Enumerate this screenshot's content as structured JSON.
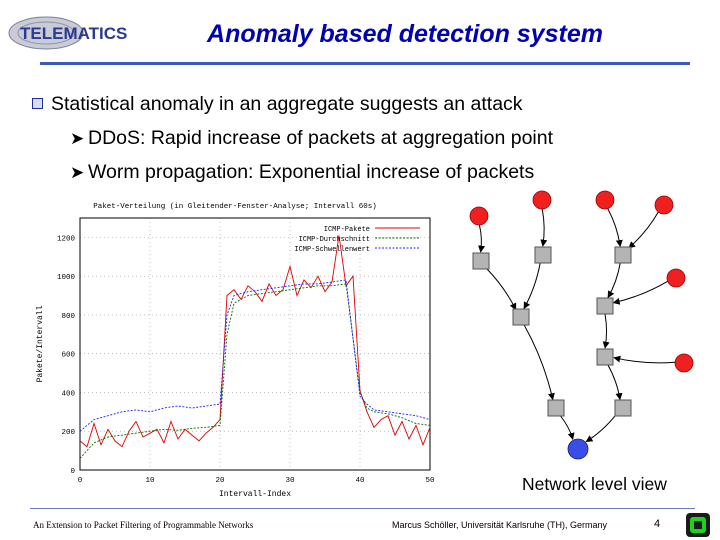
{
  "header": {
    "logo_text": "TELEMATICS",
    "title": "Anomaly based detection system"
  },
  "bullets": {
    "main": "Statistical anomaly in an aggregate suggests an attack",
    "sub1": "DDoS: Rapid increase of packets at aggregation point",
    "sub2": "Worm propagation: Exponential increase of packets"
  },
  "chart_data": {
    "type": "line",
    "title": "Paket-Verteilung (in Gleitender-Fenster-Analyse; Intervall 60s)",
    "xlabel": "Intervall-Index",
    "ylabel": "Pakete/Intervall",
    "xlim": [
      0,
      50
    ],
    "ylim": [
      0,
      1300
    ],
    "xticks": [
      0,
      10,
      20,
      30,
      40,
      50
    ],
    "yticks": [
      0,
      200,
      400,
      600,
      800,
      1000,
      1200
    ],
    "legend_position": "top-right",
    "series": [
      {
        "name": "ICMP-Pakete",
        "color": "#e00000",
        "x": [
          0,
          1,
          2,
          3,
          4,
          5,
          6,
          7,
          8,
          9,
          10,
          11,
          12,
          13,
          14,
          15,
          16,
          17,
          18,
          19,
          20,
          21,
          22,
          23,
          24,
          25,
          26,
          27,
          28,
          29,
          30,
          31,
          32,
          33,
          34,
          35,
          36,
          37,
          38,
          39,
          40,
          41,
          42,
          43,
          44,
          45,
          46,
          47,
          48,
          49,
          50
        ],
        "y": [
          150,
          120,
          240,
          130,
          210,
          150,
          120,
          200,
          250,
          170,
          190,
          210,
          140,
          250,
          160,
          210,
          180,
          150,
          190,
          220,
          260,
          900,
          930,
          880,
          950,
          920,
          870,
          960,
          900,
          930,
          1050,
          900,
          980,
          940,
          1000,
          920,
          970,
          1210,
          950,
          1000,
          410,
          300,
          220,
          260,
          280,
          180,
          250,
          160,
          230,
          130,
          220
        ]
      },
      {
        "name": "ICMP-Durchschnitt",
        "color": "#007000",
        "x": [
          0,
          2,
          4,
          6,
          8,
          10,
          12,
          14,
          16,
          18,
          20,
          21,
          22,
          24,
          26,
          28,
          30,
          32,
          34,
          36,
          38,
          40,
          41,
          42,
          44,
          46,
          48,
          50
        ],
        "y": [
          60,
          140,
          170,
          180,
          190,
          200,
          210,
          205,
          215,
          220,
          230,
          700,
          860,
          900,
          910,
          920,
          930,
          940,
          950,
          950,
          960,
          400,
          320,
          300,
          290,
          270,
          240,
          230
        ]
      },
      {
        "name": "ICMP-Schwellenwert",
        "color": "#2020ff",
        "x": [
          0,
          2,
          4,
          6,
          8,
          10,
          12,
          14,
          16,
          18,
          20,
          21,
          22,
          24,
          26,
          28,
          30,
          32,
          34,
          36,
          38,
          40,
          41,
          42,
          44,
          46,
          48,
          50
        ],
        "y": [
          200,
          260,
          280,
          300,
          310,
          300,
          320,
          330,
          320,
          330,
          340,
          800,
          900,
          920,
          930,
          940,
          950,
          960,
          960,
          970,
          980,
          380,
          340,
          310,
          300,
          290,
          280,
          260
        ]
      }
    ]
  },
  "tree": {
    "caption": "Network level view"
  },
  "footer": {
    "left": "An Extension to Packet Filtering of Programmable Networks",
    "right": "Marcus Schöller, Universität Karlsruhe (TH), Germany",
    "page": "4"
  }
}
